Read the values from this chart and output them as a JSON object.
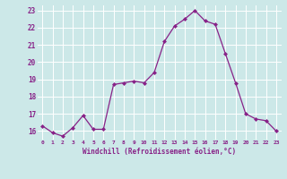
{
  "x": [
    0,
    1,
    2,
    3,
    4,
    5,
    6,
    7,
    8,
    9,
    10,
    11,
    12,
    13,
    14,
    15,
    16,
    17,
    18,
    19,
    20,
    21,
    22,
    23
  ],
  "y": [
    16.3,
    15.9,
    15.7,
    16.2,
    16.9,
    16.1,
    16.1,
    18.7,
    18.8,
    18.9,
    18.8,
    19.4,
    21.2,
    22.1,
    22.5,
    23.0,
    22.4,
    22.2,
    20.5,
    18.8,
    17.0,
    16.7,
    16.6,
    16.0
  ],
  "line_color": "#882288",
  "marker": "D",
  "marker_size": 2.0,
  "bg_color": "#cce8e8",
  "grid_color": "#ffffff",
  "xlabel": "Windchill (Refroidissement éolien,°C)",
  "xlabel_color": "#882288",
  "tick_color": "#882288",
  "ylim": [
    15.5,
    23.3
  ],
  "yticks": [
    16,
    17,
    18,
    19,
    20,
    21,
    22,
    23
  ],
  "xticks": [
    0,
    1,
    2,
    3,
    4,
    5,
    6,
    7,
    8,
    9,
    10,
    11,
    12,
    13,
    14,
    15,
    16,
    17,
    18,
    19,
    20,
    21,
    22,
    23
  ],
  "xlim": [
    -0.5,
    23.5
  ]
}
